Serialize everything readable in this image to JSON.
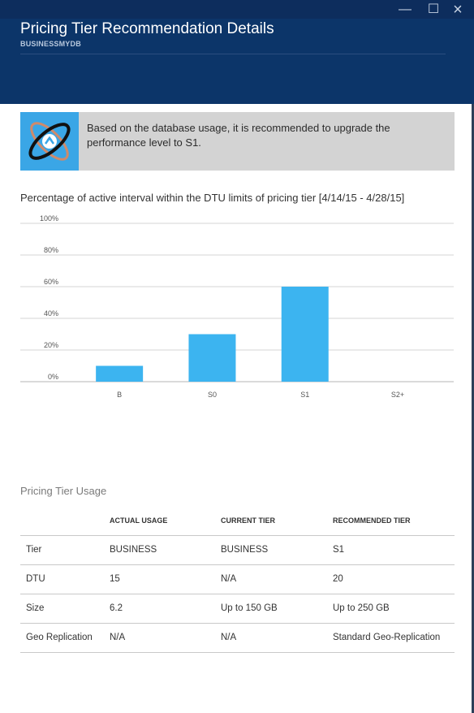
{
  "window": {
    "minimize_glyph": "—",
    "maximize_glyph": "☐",
    "close_glyph": "×"
  },
  "header": {
    "title": "Pricing Tier Recommendation Details",
    "subtitle": "BUSINESSMYDB"
  },
  "recommendation": {
    "text": "Based on the database usage, it is recommended to upgrade the performance level to S1.",
    "icon": "sql-database-upgrade-icon"
  },
  "chart_section": {
    "title": "Percentage of active interval within the DTU limits of pricing tier [4/14/15 - 4/28/15]"
  },
  "chart_data": {
    "type": "bar",
    "categories": [
      "B",
      "S0",
      "S1",
      "S2+"
    ],
    "values": [
      10,
      30,
      60,
      0
    ],
    "y_ticks": [
      "0%",
      "20%",
      "40%",
      "60%",
      "80%",
      "100%"
    ],
    "ylim": [
      0,
      100
    ],
    "grid": true,
    "bar_color": "#3cb4f0",
    "title": "",
    "xlabel": "",
    "ylabel": ""
  },
  "usage": {
    "title": "Pricing Tier Usage",
    "columns": [
      "",
      "ACTUAL USAGE",
      "CURRENT TIER",
      "RECOMMENDED TIER"
    ],
    "rows": [
      [
        "Tier",
        "BUSINESS",
        "BUSINESS",
        "S1"
      ],
      [
        "DTU",
        "15",
        "N/A",
        "20"
      ],
      [
        "Size",
        "6.2",
        "Up to 150 GB",
        "Up to 250 GB"
      ],
      [
        "Geo Replication",
        "N/A",
        "N/A",
        "Standard Geo-Replication"
      ]
    ]
  },
  "colors": {
    "header_bg": "#0c3569",
    "titlebar_bg": "#0d2d5d",
    "accent": "#3aa6e6",
    "banner_bg": "#d3d3d3"
  }
}
